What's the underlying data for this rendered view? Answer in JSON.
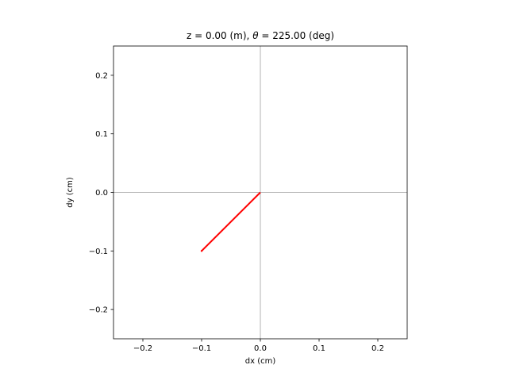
{
  "chart_data": {
    "type": "line",
    "title_parts": {
      "prefix": "z = 0.00 (m), ",
      "symbol": "θ",
      "suffix": " = 225.00 (deg)"
    },
    "xlabel": "dx (cm)",
    "ylabel": "dy (cm)",
    "xlim": [
      -0.25,
      0.25
    ],
    "ylim": [
      -0.25,
      0.25
    ],
    "xticks": [
      -0.2,
      -0.1,
      0.0,
      0.1,
      0.2
    ],
    "xtick_labels": [
      "−0.2",
      "−0.1",
      "0.0",
      "0.1",
      "0.2"
    ],
    "yticks": [
      -0.2,
      -0.1,
      0.0,
      0.1,
      0.2
    ],
    "ytick_labels": [
      "−0.2",
      "−0.1",
      "0.0",
      "0.1",
      "0.2"
    ],
    "reference_lines": {
      "x": 0.0,
      "y": 0.0,
      "color": "#a0a0a0"
    },
    "grid": false,
    "series": [
      {
        "color": "#ff0000",
        "x": [
          0.0,
          -0.1
        ],
        "y": [
          0.0,
          -0.1
        ]
      }
    ]
  }
}
